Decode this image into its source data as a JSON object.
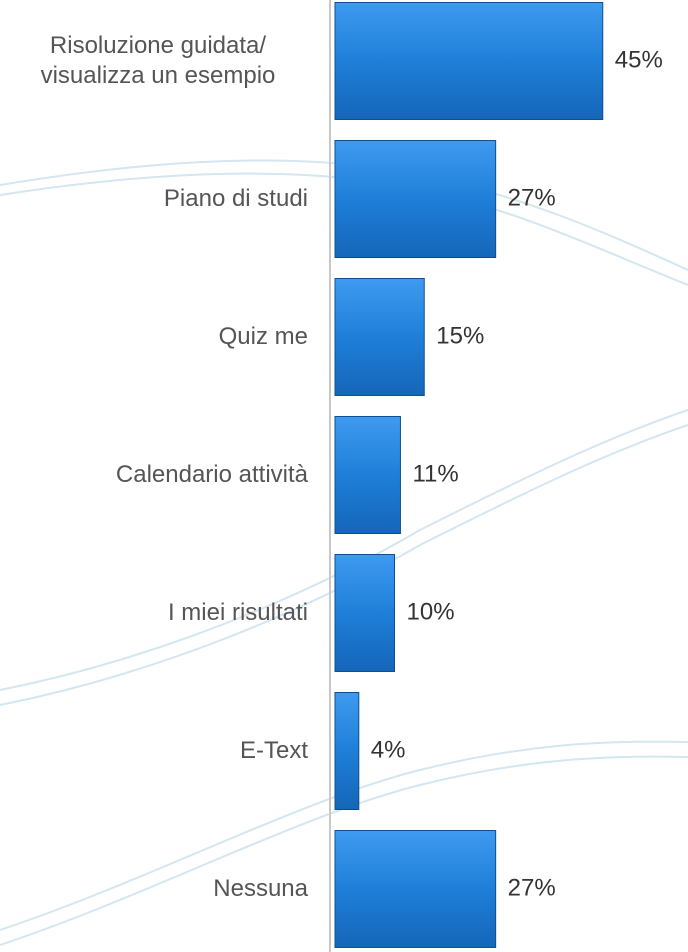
{
  "chart_data": {
    "type": "bar",
    "orientation": "horizontal",
    "categories": [
      "Risoluzione guidata/ visualizza un esempio",
      "Piano di studi",
      "Quiz me",
      "Calendario attività",
      "I miei risultati",
      "E-Text",
      "Nessuna"
    ],
    "values": [
      45,
      27,
      15,
      11,
      10,
      4,
      27
    ],
    "value_labels": [
      "45%",
      "27%",
      "15%",
      "11%",
      "10%",
      "4%",
      "27%"
    ],
    "color": "#1f7fd8"
  }
}
